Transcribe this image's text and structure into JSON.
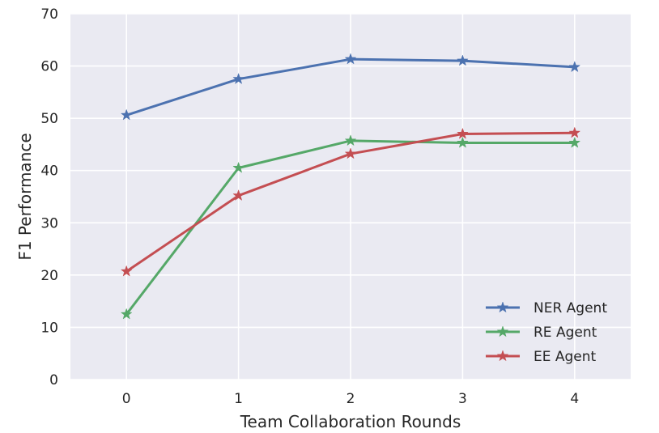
{
  "chart_data": {
    "type": "line",
    "title": "",
    "xlabel": "Team Collaboration Rounds",
    "ylabel": "F1 Performance",
    "x": [
      0,
      1,
      2,
      3,
      4
    ],
    "xlim": [
      -0.5,
      4.5
    ],
    "ylim": [
      0,
      70
    ],
    "xticks": [
      "0",
      "1",
      "2",
      "3",
      "4"
    ],
    "yticks": [
      "0",
      "10",
      "20",
      "30",
      "40",
      "50",
      "60",
      "70"
    ],
    "grid": true,
    "legend_position": "lower-right",
    "marker": "star",
    "series": [
      {
        "name": "NER Agent",
        "color": "#4c72b0",
        "values": [
          50.6,
          57.5,
          61.3,
          61.0,
          59.8
        ]
      },
      {
        "name": "RE Agent",
        "color": "#55a868",
        "values": [
          12.5,
          40.5,
          45.7,
          45.3,
          45.3
        ]
      },
      {
        "name": "EE Agent",
        "color": "#c44e52",
        "values": [
          20.7,
          35.2,
          43.2,
          47.0,
          47.2
        ]
      }
    ]
  }
}
